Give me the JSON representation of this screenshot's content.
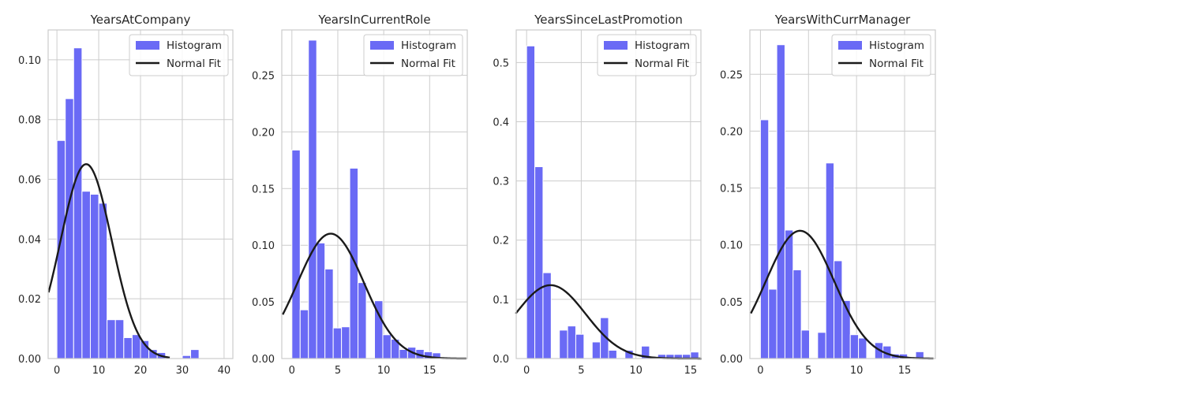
{
  "chart_data": [
    {
      "type": "bar",
      "title": "YearsAtCompany",
      "xlabel": "",
      "ylabel": "",
      "xlim": [
        -2.1,
        42.1
      ],
      "ylim": [
        0,
        0.11
      ],
      "xticks": [
        0,
        10,
        20,
        30,
        40
      ],
      "yticks": [
        0.0,
        0.02,
        0.04,
        0.06,
        0.08,
        0.1
      ],
      "ytick_labels": [
        "0.00",
        "0.02",
        "0.04",
        "0.06",
        "0.08",
        "0.10"
      ],
      "bin_start": 0,
      "bin_width": 2,
      "values": [
        0.073,
        0.087,
        0.104,
        0.056,
        0.055,
        0.052,
        0.013,
        0.013,
        0.007,
        0.008,
        0.006,
        0.003,
        0.002,
        0.0,
        0.0,
        0.001,
        0.003,
        0.0,
        0.0,
        0.0,
        0.0
      ],
      "normal_fit": {
        "mean": 7.0,
        "std": 6.13,
        "x_range": [
          -2,
          27
        ]
      },
      "grid": true,
      "legend": {
        "position": "top-right",
        "entries": [
          "Histogram",
          "Normal Fit"
        ]
      }
    },
    {
      "type": "bar",
      "title": "YearsInCurrentRole",
      "xlabel": "",
      "ylabel": "",
      "xlim": [
        -1.1,
        19.1
      ],
      "ylim": [
        0,
        0.29
      ],
      "xticks": [
        0,
        5,
        10,
        15
      ],
      "yticks": [
        0.0,
        0.05,
        0.1,
        0.15,
        0.2,
        0.25
      ],
      "ytick_labels": [
        "0.00",
        "0.05",
        "0.10",
        "0.15",
        "0.20",
        "0.25"
      ],
      "bin_start": 0,
      "bin_width": 0.9,
      "values": [
        0.184,
        0.043,
        0.281,
        0.102,
        0.079,
        0.027,
        0.028,
        0.168,
        0.067,
        0.0,
        0.051,
        0.021,
        0.017,
        0.008,
        0.01,
        0.008,
        0.006,
        0.005,
        0.0,
        0.0
      ],
      "normal_fit": {
        "mean": 4.23,
        "std": 3.62,
        "x_range": [
          -1,
          19
        ]
      },
      "grid": true,
      "legend": {
        "position": "top-right",
        "entries": [
          "Histogram",
          "Normal Fit"
        ]
      }
    },
    {
      "type": "bar",
      "title": "YearsSinceLastPromotion",
      "xlabel": "",
      "ylabel": "",
      "xlim": [
        -0.95,
        15.95
      ],
      "ylim": [
        0,
        0.555
      ],
      "xticks": [
        0,
        5,
        10,
        15
      ],
      "yticks": [
        0.0,
        0.1,
        0.2,
        0.3,
        0.4,
        0.5
      ],
      "ytick_labels": [
        "0.0",
        "0.1",
        "0.2",
        "0.3",
        "0.4",
        "0.5"
      ],
      "bin_start": 0,
      "bin_width": 0.75,
      "values": [
        0.528,
        0.324,
        0.145,
        0.0,
        0.048,
        0.055,
        0.041,
        0.0,
        0.028,
        0.069,
        0.014,
        0.0,
        0.014,
        0.0,
        0.021,
        0.0,
        0.007,
        0.007,
        0.007,
        0.007,
        0.011
      ],
      "normal_fit": {
        "mean": 2.19,
        "std": 3.22,
        "x_range": [
          -1,
          16
        ]
      },
      "grid": true,
      "legend": {
        "position": "top-right",
        "entries": [
          "Histogram",
          "Normal Fit"
        ]
      }
    },
    {
      "type": "bar",
      "title": "YearsWithCurrManager",
      "xlabel": "",
      "ylabel": "",
      "xlim": [
        -1.1,
        18.2
      ],
      "ylim": [
        0,
        0.289
      ],
      "xticks": [
        0,
        5,
        10,
        15
      ],
      "yticks": [
        0.0,
        0.05,
        0.1,
        0.15,
        0.2,
        0.25
      ],
      "ytick_labels": [
        "0.00",
        "0.05",
        "0.10",
        "0.15",
        "0.20",
        "0.25"
      ],
      "bin_start": 0,
      "bin_width": 0.85,
      "values": [
        0.21,
        0.061,
        0.276,
        0.113,
        0.078,
        0.025,
        0.0,
        0.023,
        0.172,
        0.086,
        0.051,
        0.021,
        0.018,
        0.0,
        0.014,
        0.011,
        0.004,
        0.004,
        0.0,
        0.006,
        0.0
      ],
      "normal_fit": {
        "mean": 4.12,
        "std": 3.55,
        "x_range": [
          -1,
          18
        ]
      },
      "grid": true,
      "legend": {
        "position": "top-right",
        "entries": [
          "Histogram",
          "Normal Fit"
        ]
      }
    }
  ],
  "colors": {
    "bar": "#6a6af5",
    "bar_edge": "#ffffff",
    "fit_line": "#1a1a1a",
    "grid": "#cccccc",
    "axes_edge": "#cccccc",
    "text": "#262626"
  }
}
